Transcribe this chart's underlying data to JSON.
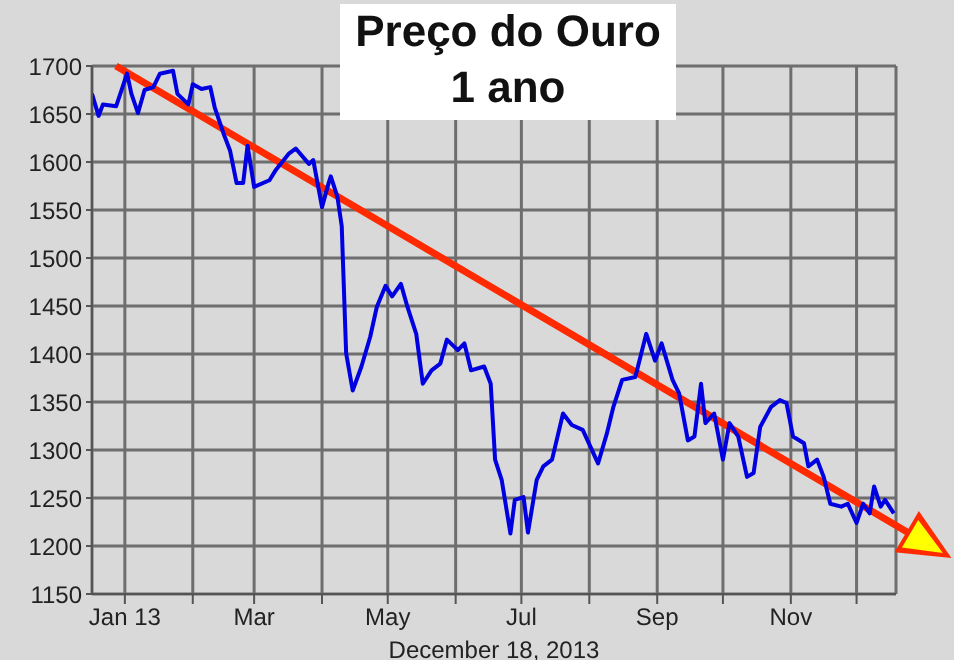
{
  "chart_data": {
    "type": "line",
    "title": "Preço do Ouro",
    "subtitle": "1 ano",
    "xlabel": "December 18, 2013",
    "xlim": [
      "2012-12-17",
      "2013-12-19"
    ],
    "ylim": [
      1150,
      1700
    ],
    "yticks": [
      1150,
      1200,
      1250,
      1300,
      1350,
      1400,
      1450,
      1500,
      1550,
      1600,
      1650,
      1700
    ],
    "xticks": [
      {
        "value": "2013-01-01",
        "label": "Jan 13"
      },
      {
        "value": "2013-02-01",
        "label": null
      },
      {
        "value": "2013-03-01",
        "label": "Mar"
      },
      {
        "value": "2013-04-01",
        "label": null
      },
      {
        "value": "2013-05-01",
        "label": "May"
      },
      {
        "value": "2013-06-01",
        "label": null
      },
      {
        "value": "2013-07-01",
        "label": "Jul"
      },
      {
        "value": "2013-08-01",
        "label": null
      },
      {
        "value": "2013-09-01",
        "label": "Sep"
      },
      {
        "value": "2013-10-01",
        "label": null
      },
      {
        "value": "2013-11-01",
        "label": "Nov"
      },
      {
        "value": "2013-12-01",
        "label": null
      }
    ],
    "grid": true,
    "marker": "none",
    "line_style": "solid",
    "series": [
      {
        "color": "#0000e0",
        "x": [
          "2012-12-17",
          "2012-12-20",
          "2012-12-22",
          "2012-12-28",
          "2013-01-02",
          "2013-01-04",
          "2013-01-07",
          "2013-01-10",
          "2013-01-14",
          "2013-01-17",
          "2013-01-23",
          "2013-01-25",
          "2013-01-30",
          "2013-02-01",
          "2013-02-05",
          "2013-02-09",
          "2013-02-11",
          "2013-02-15",
          "2013-02-18",
          "2013-02-21",
          "2013-02-24",
          "2013-02-26",
          "2013-03-01",
          "2013-03-08",
          "2013-03-11",
          "2013-03-17",
          "2013-03-20",
          "2013-03-26",
          "2013-03-28",
          "2013-04-01",
          "2013-04-04",
          "2013-04-05",
          "2013-04-08",
          "2013-04-10",
          "2013-04-12",
          "2013-04-15",
          "2013-04-19",
          "2013-04-23",
          "2013-04-26",
          "2013-04-30",
          "2013-05-03",
          "2013-05-07",
          "2013-05-10",
          "2013-05-14",
          "2013-05-17",
          "2013-05-21",
          "2013-05-25",
          "2013-05-28",
          "2013-06-02",
          "2013-06-05",
          "2013-06-08",
          "2013-06-14",
          "2013-06-17",
          "2013-06-19",
          "2013-06-22",
          "2013-06-26",
          "2013-06-28",
          "2013-07-02",
          "2013-07-04",
          "2013-07-08",
          "2013-07-11",
          "2013-07-15",
          "2013-07-20",
          "2013-07-24",
          "2013-07-29",
          "2013-08-05",
          "2013-08-09",
          "2013-08-12",
          "2013-08-16",
          "2013-08-22",
          "2013-08-27",
          "2013-08-31",
          "2013-09-03",
          "2013-09-08",
          "2013-09-11",
          "2013-09-15",
          "2013-09-18",
          "2013-09-21",
          "2013-09-23",
          "2013-09-27",
          "2013-10-01",
          "2013-10-04",
          "2013-10-08",
          "2013-10-12",
          "2013-10-15",
          "2013-10-18",
          "2013-10-23",
          "2013-10-27",
          "2013-10-30",
          "2013-11-02",
          "2013-11-07",
          "2013-11-09",
          "2013-11-13",
          "2013-11-16",
          "2013-11-19",
          "2013-11-24",
          "2013-11-27",
          "2013-12-01",
          "2013-12-04",
          "2013-12-07",
          "2013-12-09",
          "2013-12-12",
          "2013-12-14",
          "2013-12-18"
        ],
        "values": [
          1671,
          1648,
          1660,
          1658,
          1692,
          1671,
          1651,
          1675,
          1678,
          1692,
          1695,
          1671,
          1660,
          1681,
          1676,
          1678,
          1657,
          1630,
          1612,
          1578,
          1578,
          1617,
          1574,
          1581,
          1592,
          1609,
          1614,
          1598,
          1602,
          1553,
          1578,
          1585,
          1564,
          1533,
          1401,
          1362,
          1387,
          1418,
          1449,
          1471,
          1460,
          1473,
          1449,
          1421,
          1369,
          1383,
          1390,
          1415,
          1404,
          1411,
          1383,
          1387,
          1369,
          1290,
          1269,
          1213,
          1248,
          1251,
          1214,
          1269,
          1283,
          1290,
          1338,
          1326,
          1321,
          1286,
          1317,
          1345,
          1373,
          1376,
          1421,
          1393,
          1411,
          1373,
          1359,
          1310,
          1314,
          1369,
          1328,
          1338,
          1290,
          1328,
          1314,
          1272,
          1276,
          1324,
          1345,
          1352,
          1349,
          1314,
          1307,
          1283,
          1290,
          1272,
          1244,
          1241,
          1244,
          1224,
          1244,
          1234,
          1262,
          1241,
          1248,
          1234
        ]
      }
    ]
  }
}
